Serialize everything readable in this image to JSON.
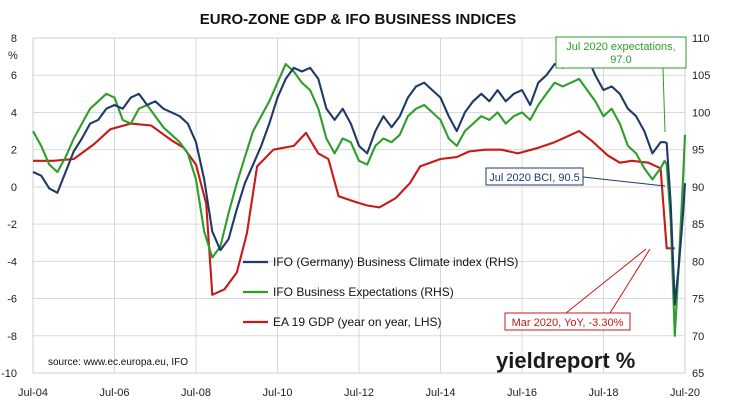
{
  "chart_data": {
    "type": "line",
    "title": "EURO-ZONE GDP & IFO BUSINESS INDICES",
    "left_axis": {
      "unit_label": "%",
      "ylim": [
        -10,
        8
      ],
      "ticks": [
        "8",
        "6",
        "4",
        "2",
        "0",
        "-2",
        "-4",
        "-6",
        "-8",
        "-10"
      ]
    },
    "right_axis": {
      "ylim": [
        65,
        110
      ],
      "ticks": [
        "110",
        "105",
        "100",
        "95",
        "90",
        "85",
        "80",
        "75",
        "70",
        "65"
      ]
    },
    "x_axis": {
      "range": [
        2004.5,
        2020.5
      ],
      "ticks": [
        "Jul-04",
        "Jul-06",
        "Jul-08",
        "Jul-10",
        "Jul-12",
        "Jul-14",
        "Jul-16",
        "Jul-18",
        "Jul-20"
      ]
    },
    "grid": true,
    "colors": {
      "climate": "#1f3a68",
      "expectations": "#2e9e2a",
      "gdp": "#c81818",
      "grid": "#d9d9d9"
    },
    "series": [
      {
        "name": "IFO (Germany) Business Climate index (RHS)",
        "axis": "right",
        "color": "#1f3a68",
        "points": [
          [
            2004.5,
            92.0
          ],
          [
            2004.7,
            91.5
          ],
          [
            2004.9,
            89.8
          ],
          [
            2005.1,
            89.2
          ],
          [
            2005.3,
            92.0
          ],
          [
            2005.5,
            94.8
          ],
          [
            2005.7,
            96.5
          ],
          [
            2005.9,
            98.5
          ],
          [
            2006.1,
            99.0
          ],
          [
            2006.3,
            100.5
          ],
          [
            2006.5,
            101.0
          ],
          [
            2006.7,
            100.5
          ],
          [
            2006.9,
            102.0
          ],
          [
            2007.1,
            102.5
          ],
          [
            2007.3,
            101.0
          ],
          [
            2007.5,
            101.5
          ],
          [
            2007.7,
            100.5
          ],
          [
            2007.9,
            100.0
          ],
          [
            2008.1,
            99.5
          ],
          [
            2008.3,
            98.5
          ],
          [
            2008.5,
            96.0
          ],
          [
            2008.7,
            91.0
          ],
          [
            2008.9,
            84.0
          ],
          [
            2009.1,
            81.5
          ],
          [
            2009.3,
            83.0
          ],
          [
            2009.5,
            87.0
          ],
          [
            2009.7,
            90.5
          ],
          [
            2009.9,
            93.0
          ],
          [
            2010.1,
            95.5
          ],
          [
            2010.3,
            98.5
          ],
          [
            2010.5,
            102.0
          ],
          [
            2010.7,
            104.5
          ],
          [
            2010.9,
            106.0
          ],
          [
            2011.1,
            105.5
          ],
          [
            2011.3,
            106.0
          ],
          [
            2011.5,
            104.5
          ],
          [
            2011.7,
            100.5
          ],
          [
            2011.9,
            99.0
          ],
          [
            2012.1,
            100.5
          ],
          [
            2012.3,
            98.5
          ],
          [
            2012.5,
            95.5
          ],
          [
            2012.7,
            94.5
          ],
          [
            2012.9,
            97.5
          ],
          [
            2013.1,
            99.5
          ],
          [
            2013.3,
            98.0
          ],
          [
            2013.5,
            99.5
          ],
          [
            2013.7,
            102.0
          ],
          [
            2013.9,
            103.5
          ],
          [
            2014.1,
            104.0
          ],
          [
            2014.3,
            103.0
          ],
          [
            2014.5,
            102.0
          ],
          [
            2014.7,
            99.5
          ],
          [
            2014.9,
            97.5
          ],
          [
            2015.1,
            100.0
          ],
          [
            2015.3,
            101.5
          ],
          [
            2015.5,
            102.5
          ],
          [
            2015.7,
            101.5
          ],
          [
            2015.9,
            103.0
          ],
          [
            2016.1,
            101.5
          ],
          [
            2016.3,
            102.5
          ],
          [
            2016.5,
            103.0
          ],
          [
            2016.7,
            101.0
          ],
          [
            2016.9,
            104.0
          ],
          [
            2017.1,
            105.0
          ],
          [
            2017.3,
            106.5
          ],
          [
            2017.5,
            106.0
          ],
          [
            2017.7,
            106.5
          ],
          [
            2017.9,
            108.0
          ],
          [
            2018.1,
            107.5
          ],
          [
            2018.3,
            105.0
          ],
          [
            2018.5,
            103.0
          ],
          [
            2018.7,
            103.5
          ],
          [
            2018.9,
            102.5
          ],
          [
            2019.1,
            100.5
          ],
          [
            2019.3,
            99.5
          ],
          [
            2019.5,
            97.5
          ],
          [
            2019.7,
            94.5
          ],
          [
            2019.9,
            96.0
          ],
          [
            2020.0,
            96.0
          ],
          [
            2020.05,
            95.9
          ],
          [
            2020.15,
            87.7
          ],
          [
            2020.25,
            74.2
          ],
          [
            2020.35,
            79.5
          ],
          [
            2020.45,
            86.3
          ],
          [
            2020.5,
            90.5
          ]
        ]
      },
      {
        "name": "IFO Business Expectations (RHS)",
        "axis": "right",
        "color": "#2e9e2a",
        "points": [
          [
            2004.5,
            97.5
          ],
          [
            2004.7,
            95.5
          ],
          [
            2004.9,
            93.0
          ],
          [
            2005.1,
            92.0
          ],
          [
            2005.3,
            94.0
          ],
          [
            2005.5,
            96.5
          ],
          [
            2005.7,
            98.5
          ],
          [
            2005.9,
            100.5
          ],
          [
            2006.1,
            101.5
          ],
          [
            2006.3,
            102.5
          ],
          [
            2006.5,
            102.0
          ],
          [
            2006.7,
            99.0
          ],
          [
            2006.9,
            98.5
          ],
          [
            2007.1,
            100.5
          ],
          [
            2007.3,
            101.0
          ],
          [
            2007.5,
            99.5
          ],
          [
            2007.7,
            98.0
          ],
          [
            2007.9,
            97.0
          ],
          [
            2008.1,
            96.0
          ],
          [
            2008.3,
            94.5
          ],
          [
            2008.5,
            91.0
          ],
          [
            2008.7,
            84.0
          ],
          [
            2008.9,
            80.5
          ],
          [
            2009.1,
            82.0
          ],
          [
            2009.3,
            86.5
          ],
          [
            2009.5,
            90.5
          ],
          [
            2009.7,
            94.0
          ],
          [
            2009.9,
            97.5
          ],
          [
            2010.1,
            99.5
          ],
          [
            2010.3,
            101.5
          ],
          [
            2010.5,
            104.0
          ],
          [
            2010.7,
            106.5
          ],
          [
            2010.9,
            105.5
          ],
          [
            2011.1,
            104.0
          ],
          [
            2011.3,
            103.0
          ],
          [
            2011.5,
            100.5
          ],
          [
            2011.7,
            96.5
          ],
          [
            2011.9,
            94.5
          ],
          [
            2012.1,
            96.5
          ],
          [
            2012.3,
            96.0
          ],
          [
            2012.5,
            93.5
          ],
          [
            2012.7,
            93.0
          ],
          [
            2012.9,
            95.5
          ],
          [
            2013.1,
            96.5
          ],
          [
            2013.3,
            96.0
          ],
          [
            2013.5,
            97.0
          ],
          [
            2013.7,
            99.5
          ],
          [
            2013.9,
            100.5
          ],
          [
            2014.1,
            101.0
          ],
          [
            2014.3,
            100.0
          ],
          [
            2014.5,
            99.0
          ],
          [
            2014.7,
            96.5
          ],
          [
            2014.9,
            95.5
          ],
          [
            2015.1,
            97.5
          ],
          [
            2015.3,
            98.5
          ],
          [
            2015.5,
            99.5
          ],
          [
            2015.7,
            99.0
          ],
          [
            2015.9,
            100.0
          ],
          [
            2016.1,
            98.5
          ],
          [
            2016.3,
            99.5
          ],
          [
            2016.5,
            100.0
          ],
          [
            2016.7,
            99.0
          ],
          [
            2016.9,
            101.0
          ],
          [
            2017.1,
            102.5
          ],
          [
            2017.3,
            104.0
          ],
          [
            2017.5,
            103.5
          ],
          [
            2017.7,
            104.0
          ],
          [
            2017.9,
            104.5
          ],
          [
            2018.1,
            103.0
          ],
          [
            2018.3,
            101.5
          ],
          [
            2018.5,
            99.5
          ],
          [
            2018.7,
            100.5
          ],
          [
            2018.9,
            98.5
          ],
          [
            2019.1,
            95.5
          ],
          [
            2019.3,
            94.5
          ],
          [
            2019.5,
            92.5
          ],
          [
            2019.7,
            91.0
          ],
          [
            2019.9,
            92.5
          ],
          [
            2020.0,
            93.5
          ],
          [
            2020.05,
            93.0
          ],
          [
            2020.15,
            85.5
          ],
          [
            2020.25,
            70.0
          ],
          [
            2020.35,
            80.0
          ],
          [
            2020.45,
            91.0
          ],
          [
            2020.5,
            97.0
          ]
        ]
      },
      {
        "name": "EA 19 GDP (year on year, LHS)",
        "axis": "left",
        "color": "#c81818",
        "points": [
          [
            2004.5,
            1.4
          ],
          [
            2005.0,
            1.4
          ],
          [
            2005.5,
            1.5
          ],
          [
            2006.0,
            2.3
          ],
          [
            2006.4,
            3.1
          ],
          [
            2006.9,
            3.4
          ],
          [
            2007.4,
            3.3
          ],
          [
            2007.9,
            2.5
          ],
          [
            2008.2,
            2.1
          ],
          [
            2008.5,
            1.2
          ],
          [
            2008.75,
            -0.9
          ],
          [
            2008.9,
            -5.8
          ],
          [
            2009.2,
            -5.5
          ],
          [
            2009.5,
            -4.6
          ],
          [
            2009.75,
            -2.5
          ],
          [
            2010.0,
            1.1
          ],
          [
            2010.4,
            2.0
          ],
          [
            2010.9,
            2.2
          ],
          [
            2011.2,
            2.9
          ],
          [
            2011.5,
            1.8
          ],
          [
            2011.75,
            1.5
          ],
          [
            2012.0,
            -0.5
          ],
          [
            2012.4,
            -0.8
          ],
          [
            2012.7,
            -1.0
          ],
          [
            2013.0,
            -1.1
          ],
          [
            2013.4,
            -0.6
          ],
          [
            2013.75,
            0.2
          ],
          [
            2014.0,
            1.1
          ],
          [
            2014.5,
            1.5
          ],
          [
            2014.9,
            1.6
          ],
          [
            2015.2,
            1.9
          ],
          [
            2015.6,
            2.0
          ],
          [
            2016.0,
            2.0
          ],
          [
            2016.4,
            1.8
          ],
          [
            2016.9,
            2.1
          ],
          [
            2017.3,
            2.4
          ],
          [
            2017.7,
            2.8
          ],
          [
            2017.9,
            3.0
          ],
          [
            2018.2,
            2.5
          ],
          [
            2018.6,
            1.7
          ],
          [
            2018.9,
            1.3
          ],
          [
            2019.2,
            1.4
          ],
          [
            2019.6,
            1.3
          ],
          [
            2019.9,
            1.0
          ],
          [
            2020.05,
            -3.3
          ],
          [
            2020.25,
            -3.3
          ]
        ]
      }
    ],
    "annotations": [
      {
        "text_lines": [
          "Jul 2020 expectations,",
          "97.0"
        ],
        "color": "#2e9e2a"
      },
      {
        "text_lines": [
          "Jul 2020 BCI, 90.5"
        ],
        "color": "#1f3a68"
      },
      {
        "text_lines": [
          "Mar 2020, YoY, -3.30%"
        ],
        "color": "#c81818"
      }
    ],
    "source": "source: www.ec.europa.eu, IFO",
    "brand": "yieldreport %"
  }
}
